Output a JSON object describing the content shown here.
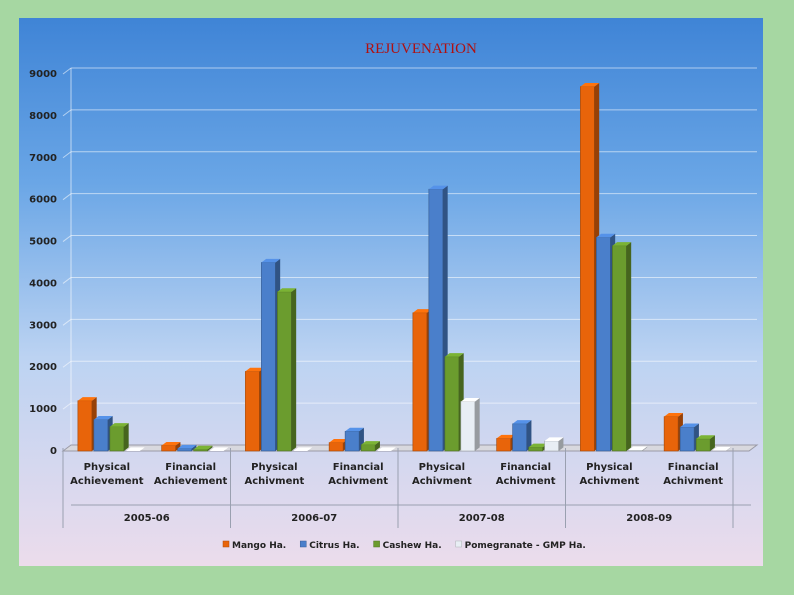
{
  "chart_data": {
    "type": "bar",
    "title": "REJUVENATION",
    "xlabel": "",
    "ylabel": "",
    "ylim": [
      0,
      9000
    ],
    "yticks": [
      0,
      1000,
      2000,
      3000,
      4000,
      5000,
      6000,
      7000,
      8000,
      9000
    ],
    "grid": true,
    "legend_position": "bottom",
    "groups": [
      {
        "label": "2005-06",
        "categories": [
          "Physical Achievement",
          "Financial Achievement"
        ]
      },
      {
        "label": "2006-07",
        "categories": [
          "Physical Achivment",
          "Financial Achivment"
        ]
      },
      {
        "label": "2007-08",
        "categories": [
          "Physical Achivment",
          "Financial Achivment"
        ]
      },
      {
        "label": "2008-09",
        "categories": [
          "Physical Achivment",
          "Financial Achivment"
        ]
      }
    ],
    "categories": [
      "Physical Achievement",
      "Financial Achievement",
      "Physical Achivment",
      "Financial Achivment",
      "Physical Achivment",
      "Financial Achivment",
      "Physical Achivment",
      "Financial Achivment"
    ],
    "series": [
      {
        "name": "Mango Ha.",
        "color": "#e8640a",
        "values": [
          1200,
          130,
          1900,
          200,
          3300,
          300,
          8700,
          820
        ]
      },
      {
        "name": "Citrus Ha.",
        "color": "#4a7fcb",
        "values": [
          750,
          60,
          4500,
          470,
          6250,
          650,
          5100,
          570
        ]
      },
      {
        "name": "Cashew Ha.",
        "color": "#6b9c2e",
        "values": [
          580,
          40,
          3800,
          150,
          2250,
          90,
          4900,
          290
        ]
      },
      {
        "name": "Pomegranate - GMP Ha.",
        "color": "#e8eef4",
        "values": [
          0,
          0,
          0,
          0,
          1180,
          240,
          20,
          10
        ]
      }
    ]
  }
}
